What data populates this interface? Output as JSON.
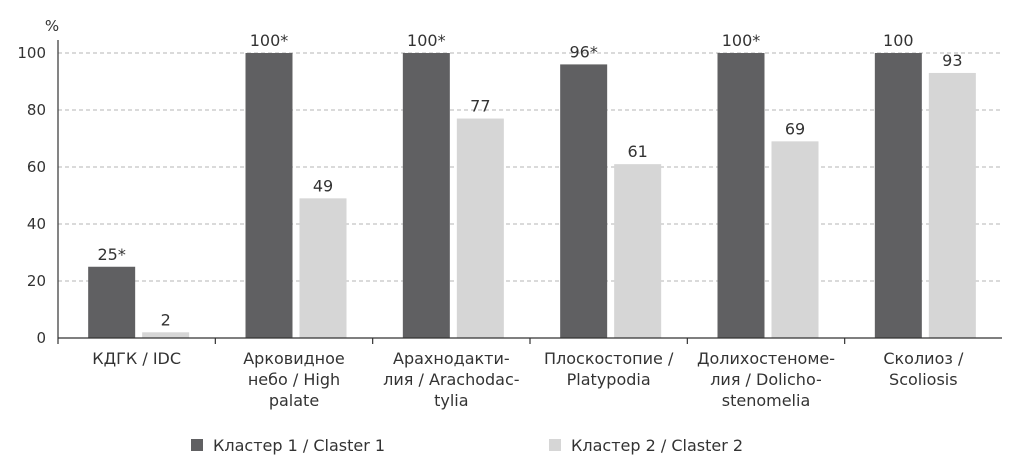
{
  "chart_data": {
    "type": "bar",
    "ylabel": "%",
    "ylim": [
      0,
      100
    ],
    "yticks": [
      0,
      20,
      40,
      60,
      80,
      100
    ],
    "grid": "horizontal-dashed",
    "legend_position": "bottom",
    "categories": [
      [
        "КДГК / IDC"
      ],
      [
        "Арковидное",
        "небо / High",
        "palate"
      ],
      [
        "Арахнодакти-",
        "лия / Arachodac-",
        "tylia"
      ],
      [
        "Плоскостопие /",
        "Platypodia"
      ],
      [
        "Долихостеноме-",
        "лия / Dolicho-",
        "stenomelia"
      ],
      [
        "Сколиоз /",
        "Scoliosis"
      ]
    ],
    "series": [
      {
        "name": "Кластер 1 / Claster 1",
        "color": "#606062",
        "values": [
          25,
          100,
          100,
          96,
          100,
          100
        ],
        "labels": [
          "25*",
          "100*",
          "100*",
          "96*",
          "100*",
          "100"
        ]
      },
      {
        "name": "Кластер 2 / Claster 2",
        "color": "#d6d6d6",
        "values": [
          2,
          49,
          77,
          61,
          69,
          93
        ],
        "labels": [
          "2",
          "49",
          "77",
          "61",
          "69",
          "93"
        ]
      }
    ]
  }
}
